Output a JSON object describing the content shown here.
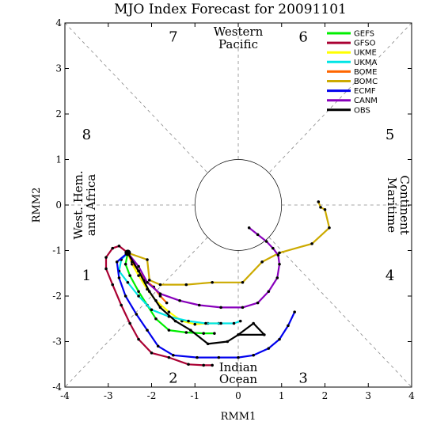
{
  "chart_data": {
    "type": "line",
    "title": "MJO Index Forecast for 20091101",
    "xlabel": "RMM1",
    "ylabel": "RMM2",
    "xlim": [
      -4,
      4
    ],
    "ylim": [
      -4,
      4
    ],
    "xticks": [
      "-4",
      "-3",
      "-2",
      "-1",
      "0",
      "1",
      "2",
      "3",
      "4"
    ],
    "yticks": [
      "-4",
      "-3",
      "-2",
      "-1",
      "0",
      "1",
      "2",
      "3",
      "4"
    ],
    "grid": "dashed phase-division lines and unit circle",
    "legend_position": "top-right",
    "phase_labels": [
      {
        "text": "1",
        "x": -3.5,
        "y": -1.55
      },
      {
        "text": "2",
        "x": -1.5,
        "y": -3.8
      },
      {
        "text": "3",
        "x": 1.5,
        "y": -3.8
      },
      {
        "text": "4",
        "x": 3.5,
        "y": -1.55
      },
      {
        "text": "5",
        "x": 3.5,
        "y": 1.55
      },
      {
        "text": "6",
        "x": 1.5,
        "y": 3.7
      },
      {
        "text": "7",
        "x": -1.5,
        "y": 3.7
      },
      {
        "text": "8",
        "x": -3.5,
        "y": 1.55
      }
    ],
    "region_labels": {
      "top": [
        "Western",
        "Pacific"
      ],
      "bottom": [
        "Indian",
        "Ocean"
      ],
      "left": [
        "West. Hem.",
        "and Africa"
      ],
      "right": [
        "Maritime",
        "Continent"
      ]
    },
    "start_point": {
      "x": -2.55,
      "y": -1.05
    },
    "series": [
      {
        "name": "GEFS",
        "color": "#00ee00",
        "points": [
          [
            -2.55,
            -1.05
          ],
          [
            -2.6,
            -1.3
          ],
          [
            -2.5,
            -1.55
          ],
          [
            -2.3,
            -1.9
          ],
          [
            -2.1,
            -2.2
          ],
          [
            -1.9,
            -2.5
          ],
          [
            -1.6,
            -2.75
          ],
          [
            -1.2,
            -2.8
          ],
          [
            -0.8,
            -2.82
          ],
          [
            -0.55,
            -2.82
          ]
        ]
      },
      {
        "name": "GFSO",
        "color": "#aa0033",
        "points": [
          [
            -2.55,
            -1.05
          ],
          [
            -2.75,
            -0.9
          ],
          [
            -2.9,
            -0.95
          ],
          [
            -3.05,
            -1.15
          ],
          [
            -3.05,
            -1.4
          ],
          [
            -2.9,
            -1.75
          ],
          [
            -2.7,
            -2.2
          ],
          [
            -2.5,
            -2.6
          ],
          [
            -2.3,
            -2.95
          ],
          [
            -2.0,
            -3.25
          ],
          [
            -1.6,
            -3.35
          ],
          [
            -1.15,
            -3.5
          ],
          [
            -0.8,
            -3.52
          ],
          [
            -0.6,
            -3.52
          ]
        ]
      },
      {
        "name": "UKME",
        "color": "#ffff00",
        "points": [
          [
            -2.55,
            -1.05
          ],
          [
            -2.45,
            -1.3
          ],
          [
            -2.3,
            -1.55
          ],
          [
            -2.1,
            -1.85
          ],
          [
            -1.9,
            -2.1
          ],
          [
            -1.6,
            -2.35
          ],
          [
            -1.3,
            -2.55
          ],
          [
            -1.0,
            -2.62
          ],
          [
            -0.7,
            -2.6
          ],
          [
            -0.45,
            -2.6
          ]
        ]
      },
      {
        "name": "UKMA",
        "color": "#00e5e5",
        "points": [
          [
            -2.55,
            -1.05
          ],
          [
            -2.7,
            -1.2
          ],
          [
            -2.75,
            -1.45
          ],
          [
            -2.55,
            -1.7
          ],
          [
            -2.3,
            -2.0
          ],
          [
            -2.0,
            -2.3
          ],
          [
            -1.6,
            -2.45
          ],
          [
            -1.15,
            -2.55
          ],
          [
            -0.75,
            -2.6
          ],
          [
            -0.4,
            -2.6
          ],
          [
            -0.1,
            -2.6
          ],
          [
            0.05,
            -2.55
          ]
        ]
      },
      {
        "name": "BOME",
        "color": "#ff6600",
        "points": [
          [
            -2.55,
            -1.05
          ],
          [
            -2.45,
            -1.25
          ],
          [
            -2.3,
            -1.45
          ],
          [
            -2.15,
            -1.65
          ],
          [
            -1.95,
            -1.8
          ],
          [
            -1.8,
            -2.0
          ],
          [
            -1.65,
            -2.15
          ]
        ]
      },
      {
        "name": "BOMC",
        "color": "#ccaa00",
        "points": [
          [
            1.85,
            0.07
          ],
          [
            1.9,
            -0.05
          ],
          [
            2.0,
            -0.1
          ],
          [
            2.1,
            -0.5
          ],
          [
            1.7,
            -0.85
          ],
          [
            0.95,
            -1.05
          ],
          [
            0.55,
            -1.25
          ],
          [
            0.1,
            -1.7
          ],
          [
            -0.6,
            -1.7
          ],
          [
            -1.2,
            -1.75
          ],
          [
            -1.8,
            -1.75
          ],
          [
            -2.05,
            -1.65
          ],
          [
            -2.1,
            -1.2
          ],
          [
            -2.55,
            -1.05
          ]
        ]
      },
      {
        "name": "ECMF",
        "color": "#0000ee",
        "points": [
          [
            -2.55,
            -1.05
          ],
          [
            -2.8,
            -1.25
          ],
          [
            -2.75,
            -1.6
          ],
          [
            -2.6,
            -2.0
          ],
          [
            -2.35,
            -2.4
          ],
          [
            -2.1,
            -2.75
          ],
          [
            -1.85,
            -3.1
          ],
          [
            -1.5,
            -3.3
          ],
          [
            -0.95,
            -3.35
          ],
          [
            -0.45,
            -3.35
          ],
          [
            0.0,
            -3.35
          ],
          [
            0.35,
            -3.3
          ],
          [
            0.7,
            -3.15
          ],
          [
            0.95,
            -2.95
          ],
          [
            1.15,
            -2.65
          ],
          [
            1.3,
            -2.35
          ]
        ]
      },
      {
        "name": "CANM",
        "color": "#8800bb",
        "points": [
          [
            0.25,
            -0.5
          ],
          [
            0.45,
            -0.65
          ],
          [
            0.65,
            -0.8
          ],
          [
            0.8,
            -0.95
          ],
          [
            0.92,
            -1.1
          ],
          [
            0.95,
            -1.3
          ],
          [
            0.9,
            -1.6
          ],
          [
            0.7,
            -1.9
          ],
          [
            0.45,
            -2.15
          ],
          [
            0.1,
            -2.25
          ],
          [
            -0.4,
            -2.25
          ],
          [
            -0.9,
            -2.2
          ],
          [
            -1.35,
            -2.1
          ],
          [
            -1.8,
            -1.95
          ],
          [
            -2.1,
            -1.7
          ],
          [
            -2.3,
            -1.35
          ],
          [
            -2.55,
            -1.05
          ]
        ]
      },
      {
        "name": "OBS",
        "color": "#000000",
        "points": [
          [
            -2.55,
            -1.05
          ],
          [
            -2.3,
            -1.45
          ],
          [
            -2.05,
            -1.9
          ],
          [
            -1.8,
            -2.25
          ],
          [
            -1.45,
            -2.55
          ],
          [
            -1.1,
            -2.75
          ],
          [
            -0.7,
            -3.05
          ],
          [
            -0.25,
            -3.0
          ],
          [
            0.0,
            -2.85
          ],
          [
            0.35,
            -2.6
          ],
          [
            0.6,
            -2.85
          ],
          [
            0.0,
            -2.85
          ]
        ]
      }
    ]
  }
}
